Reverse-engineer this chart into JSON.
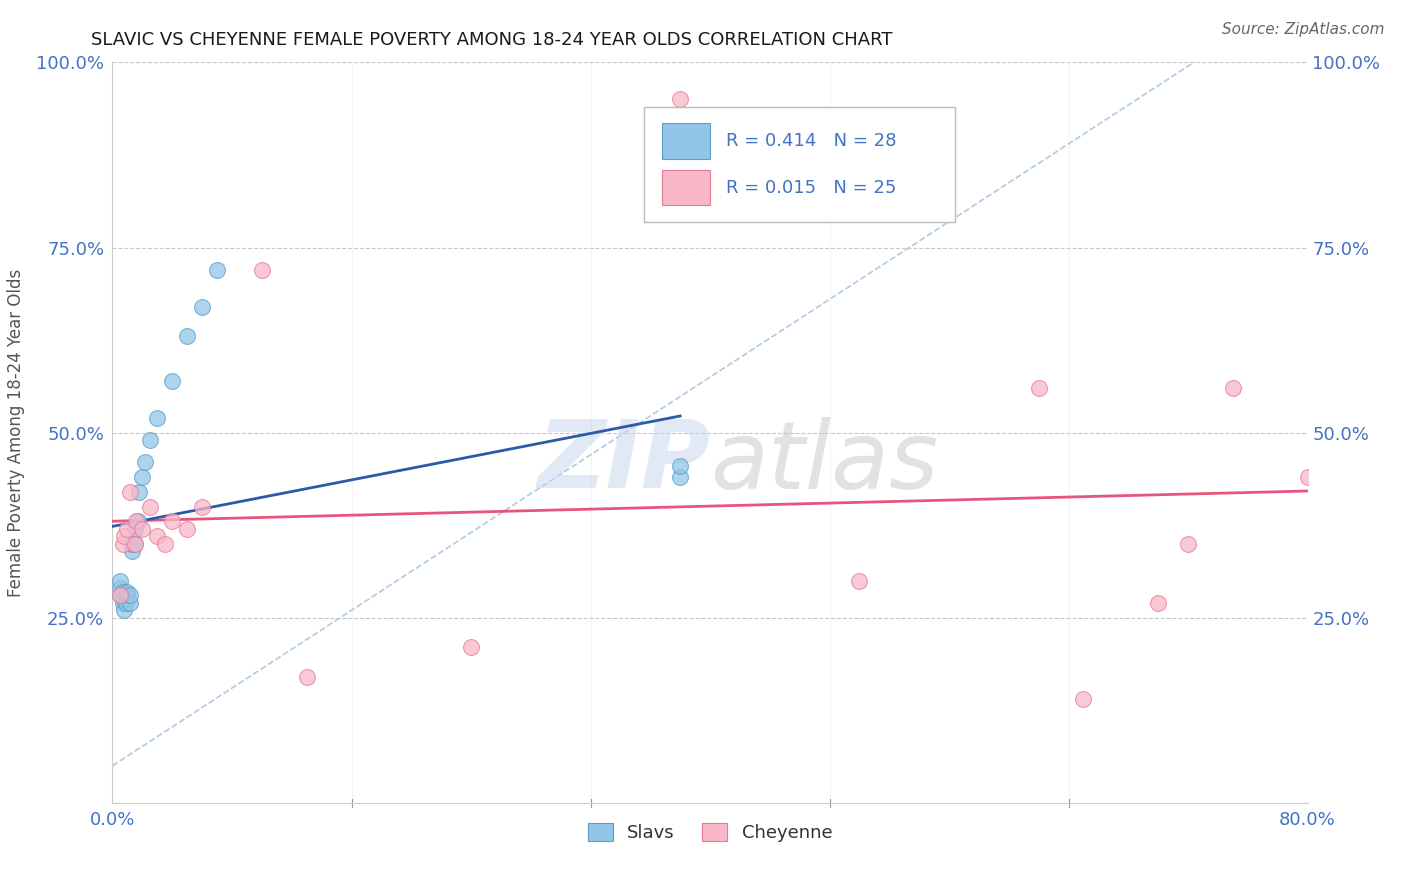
{
  "title": "SLAVIC VS CHEYENNE FEMALE POVERTY AMONG 18-24 YEAR OLDS CORRELATION CHART",
  "source": "Source: ZipAtlas.com",
  "ylabel": "Female Poverty Among 18-24 Year Olds",
  "xlim": [
    0.0,
    0.8
  ],
  "ylim": [
    0.0,
    1.0
  ],
  "xticks": [
    0.0,
    0.8
  ],
  "xticklabels": [
    "0.0%",
    "80.0%"
  ],
  "yticks": [
    0.0,
    0.25,
    0.5,
    0.75,
    1.0
  ],
  "yticklabels_left": [
    "",
    "25.0%",
    "50.0%",
    "75.0%",
    "100.0%"
  ],
  "yticklabels_right": [
    "",
    "25.0%",
    "50.0%",
    "75.0%",
    "100.0%"
  ],
  "slavs_x": [
    0.005,
    0.005,
    0.005,
    0.007,
    0.007,
    0.008,
    0.008,
    0.009,
    0.01,
    0.01,
    0.012,
    0.012,
    0.013,
    0.013,
    0.015,
    0.015,
    0.017,
    0.018,
    0.02,
    0.022,
    0.025,
    0.03,
    0.04,
    0.05,
    0.06,
    0.07,
    0.38,
    0.38
  ],
  "slavs_y": [
    0.28,
    0.29,
    0.3,
    0.27,
    0.285,
    0.26,
    0.275,
    0.27,
    0.28,
    0.285,
    0.27,
    0.28,
    0.34,
    0.35,
    0.35,
    0.37,
    0.38,
    0.42,
    0.44,
    0.46,
    0.49,
    0.52,
    0.57,
    0.63,
    0.67,
    0.72,
    0.44,
    0.455
  ],
  "cheyenne_x": [
    0.005,
    0.007,
    0.008,
    0.01,
    0.012,
    0.015,
    0.016,
    0.02,
    0.025,
    0.03,
    0.035,
    0.04,
    0.05,
    0.06,
    0.1,
    0.13,
    0.24,
    0.38,
    0.5,
    0.62,
    0.65,
    0.7,
    0.72,
    0.75,
    0.8
  ],
  "cheyenne_y": [
    0.28,
    0.35,
    0.36,
    0.37,
    0.42,
    0.35,
    0.38,
    0.37,
    0.4,
    0.36,
    0.35,
    0.38,
    0.37,
    0.4,
    0.72,
    0.17,
    0.21,
    0.95,
    0.3,
    0.56,
    0.14,
    0.27,
    0.35,
    0.56,
    0.44
  ],
  "slavs_color": "#92C5E8",
  "slavs_edge_color": "#5B9EC9",
  "cheyenne_color": "#F8B8C8",
  "cheyenne_edge_color": "#E87898",
  "slavs_line_color": "#2B5BA8",
  "cheyenne_line_color": "#E8547A",
  "diag_color": "#A8C4E0",
  "r_slavs": "R = 0.414",
  "n_slavs": "N = 28",
  "r_cheyenne": "R = 0.015",
  "n_cheyenne": "N = 25",
  "legend_label_slavs": "Slavs",
  "legend_label_cheyenne": "Cheyenne",
  "watermark_zip": "ZIP",
  "watermark_atlas": "atlas",
  "background_color": "#FFFFFF",
  "grid_color": "#C8C8C8",
  "text_color": "#4472C4",
  "title_color": "#1A1A1A",
  "source_color": "#666666"
}
